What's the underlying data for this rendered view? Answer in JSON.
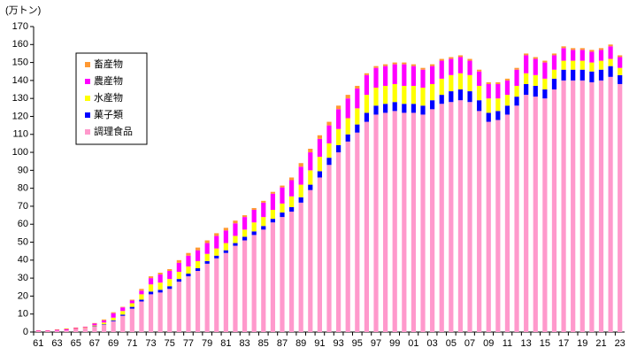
{
  "chart_data": {
    "type": "stacked_bar",
    "y_label": "(万トン)",
    "categories": [
      "61",
      null,
      "63",
      null,
      "65",
      null,
      "67",
      null,
      "69",
      null,
      "71",
      null,
      "73",
      null,
      "75",
      null,
      "77",
      null,
      "79",
      null,
      "81",
      null,
      "83",
      null,
      "85",
      null,
      "87",
      null,
      "89",
      null,
      "91",
      null,
      "93",
      null,
      "95",
      null,
      "97",
      null,
      "99",
      null,
      "01",
      null,
      "03",
      null,
      "05",
      null,
      "07",
      null,
      "09",
      null,
      "11",
      null,
      "13",
      null,
      "15",
      null,
      "17",
      null,
      "19",
      null,
      "21",
      null,
      "23"
    ],
    "series": [
      {
        "name": "調理食品",
        "color": "#ff99cc",
        "values": [
          0.5,
          0.5,
          0.8,
          1,
          1.5,
          2,
          3,
          4,
          6,
          9,
          13,
          17,
          21,
          22,
          24,
          28,
          31,
          34,
          38,
          41,
          44,
          48,
          51,
          54,
          57,
          61,
          64,
          67,
          72,
          79,
          86,
          93,
          100,
          106,
          111,
          117,
          121,
          122,
          123,
          122,
          122,
          121,
          124,
          127,
          128,
          129,
          128,
          123,
          117,
          118,
          121,
          126,
          132,
          131,
          130,
          135,
          140,
          140,
          140,
          139,
          140,
          142,
          138
        ]
      },
      {
        "name": "菓子類",
        "color": "#0000ff",
        "values": [
          0,
          0,
          0,
          0,
          0,
          0,
          0.2,
          0.3,
          0.5,
          0.7,
          1,
          1,
          1.5,
          1.5,
          1.5,
          1.5,
          1.5,
          1.5,
          1.5,
          1.5,
          1.5,
          1.5,
          2,
          2,
          2,
          2,
          2.5,
          2.5,
          3,
          3,
          3.5,
          4,
          4,
          4,
          4.5,
          5,
          5,
          5,
          5,
          5,
          5,
          5,
          5,
          5,
          6,
          6,
          6,
          6,
          5,
          5,
          5,
          5,
          6,
          6,
          5,
          6,
          6,
          6,
          6,
          6,
          6,
          6,
          5
        ]
      },
      {
        "name": "水産物",
        "color": "#ffff00",
        "values": [
          0,
          0,
          0,
          0,
          0.2,
          0.3,
          0.5,
          1,
          1.5,
          2,
          2,
          3,
          4,
          4,
          4,
          4,
          4,
          4,
          4,
          4,
          4,
          4,
          4,
          5,
          5,
          5,
          5,
          6,
          7,
          8,
          8,
          8,
          9,
          9,
          9,
          10,
          10,
          10,
          10,
          10,
          10,
          10,
          9,
          9,
          9,
          9,
          9,
          8,
          8,
          7,
          6,
          6,
          6,
          6,
          6,
          5,
          5,
          5,
          5,
          5,
          5,
          4,
          4
        ]
      },
      {
        "name": "農産物",
        "color": "#ff00ff",
        "values": [
          0.3,
          0.3,
          0.4,
          0.5,
          0.5,
          0.5,
          1,
          1.2,
          2.5,
          2,
          1.5,
          2,
          3.5,
          4.5,
          4.5,
          5,
          6,
          6,
          6,
          7,
          7,
          7,
          7,
          7,
          8,
          9,
          9,
          9,
          10,
          10,
          10,
          10,
          11,
          11,
          11,
          11,
          11,
          11,
          11,
          12,
          11,
          10,
          10,
          10,
          9,
          9,
          8,
          8,
          8,
          8,
          8,
          9,
          10,
          9,
          9,
          8,
          7,
          6,
          6,
          6,
          6,
          7,
          6
        ]
      },
      {
        "name": "畜産物",
        "color": "#ff9933",
        "values": [
          0.2,
          0.2,
          0.3,
          0.5,
          0.3,
          0.2,
          0.3,
          0.5,
          0.5,
          0.3,
          0.5,
          1,
          1,
          1,
          1,
          1.5,
          1.5,
          1.5,
          1.5,
          1.5,
          1.5,
          1.5,
          1,
          1,
          1,
          1,
          1,
          1.5,
          2,
          2,
          2,
          2,
          2,
          2,
          1.5,
          1,
          1,
          1,
          1,
          1,
          1,
          1,
          1,
          1,
          1,
          1,
          1,
          1,
          1,
          1,
          1,
          1,
          1,
          1,
          1,
          1,
          1,
          1,
          1,
          1,
          1,
          1,
          1
        ]
      }
    ],
    "ylim": [
      0,
      170
    ],
    "yticks": [
      0,
      10,
      20,
      30,
      40,
      50,
      60,
      70,
      80,
      90,
      100,
      110,
      120,
      130,
      140,
      150,
      160,
      170
    ],
    "grid": false
  }
}
